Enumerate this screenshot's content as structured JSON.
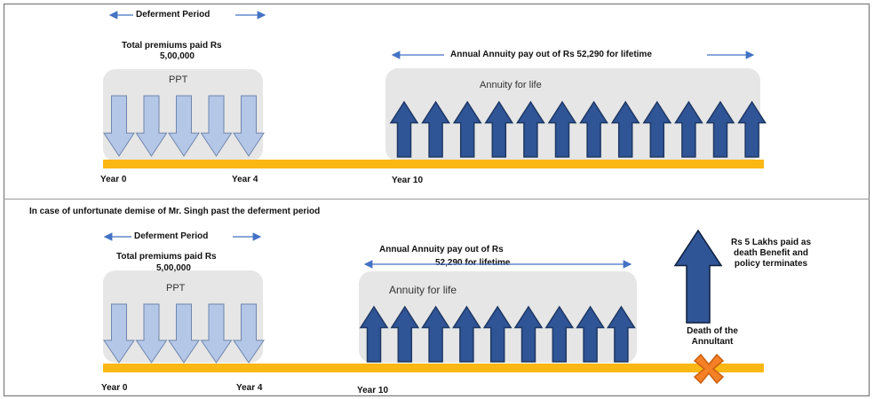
{
  "top": {
    "deferment_label": "Deferment Period",
    "premium_label_line1": "Total premiums paid Rs",
    "premium_label_line2": "5,00,000",
    "ppt_label": "PPT",
    "annuity_pay_label": "Annual Annuity pay out of Rs 52,290 for lifetime",
    "annuity_box_label": "Annuity for life",
    "year0": "Year 0",
    "year4": "Year 4",
    "year10": "Year 10"
  },
  "bottom": {
    "scenario_label": "In case of unfortunate demise of Mr. Singh past the deferment period",
    "deferment_label": "Deferment Period",
    "premium_label_line1": "Total premiums paid Rs",
    "premium_label_line2": "5,00,000",
    "ppt_label": "PPT",
    "annuity_pay_line1": "Annual Annuity pay out of Rs",
    "annuity_pay_line2": "52,290 for lifetime",
    "annuity_box_label": "Annuity for life",
    "death_benefit_line1": "Rs 5 Lakhs paid as",
    "death_benefit_line2": "death Benefit and",
    "death_benefit_line3": "policy terminates",
    "death_label_line1": "Death of the",
    "death_label_line2": "Annultant",
    "year0": "Year 0",
    "year4": "Year 4",
    "year10": "Year 10"
  },
  "diagram": {
    "top_premium_arrows": 5,
    "top_annuity_arrows": 12,
    "bottom_premium_arrows": 5,
    "bottom_annuity_arrows": 9
  },
  "colors": {
    "timeline": "#fbb714",
    "premium_arrow_fill": "#b4c7e7",
    "annuity_arrow_fill": "#2f5597",
    "annuity_arrow_stroke": "#1f3864",
    "connector_arrow": "#4472c4",
    "box_fill": "#e6e6e6",
    "death_cross": "#f58025"
  }
}
